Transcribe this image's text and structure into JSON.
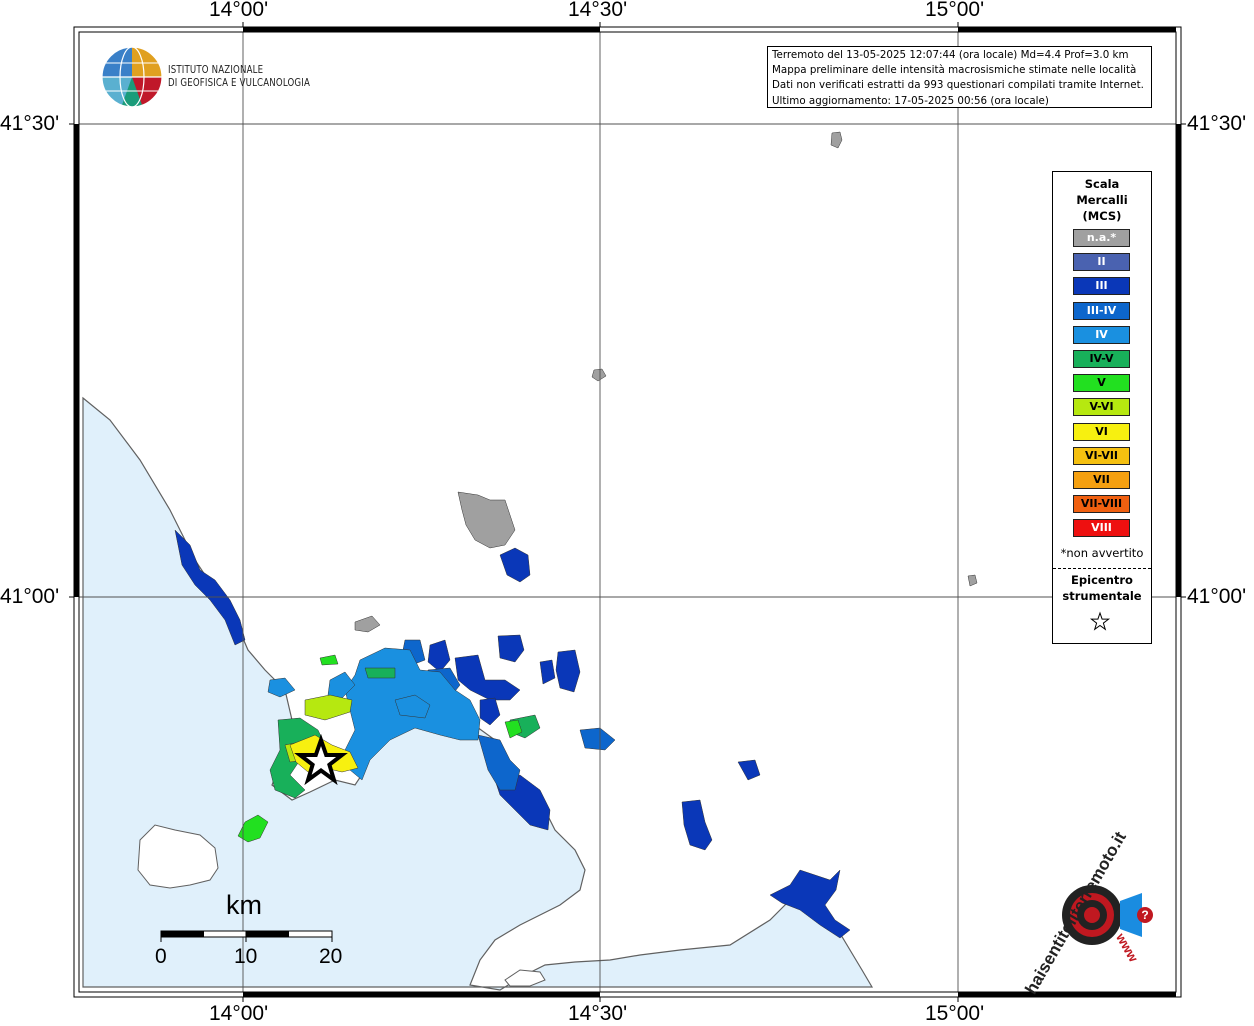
{
  "header": {
    "logo_line1": "ISTITUTO NAZIONALE",
    "logo_line2": "DI GEOFISICA E VULCANOLOGIA"
  },
  "info_box": {
    "line1": "Terremoto del 13-05-2025 12:07:44 (ora locale) Md=4.4 Prof=3.0 km",
    "line2": "Mappa preliminare delle intensità macrosismiche stimate nelle località",
    "line3": "Dati non verificati estratti da 993 questionari compilati tramite Internet.",
    "line4": "Ultimo aggiornamento: 17-05-2025 00:56 (ora locale)"
  },
  "axes": {
    "lon_labels": [
      "14°00'",
      "14°30'",
      "15°00'"
    ],
    "lat_labels": [
      "41°30'",
      "41°00'"
    ]
  },
  "legend": {
    "title_line1": "Scala",
    "title_line2": "Mercalli",
    "title_line3": "(MCS)",
    "items": [
      {
        "label": "n.a.*",
        "color": "#a0a0a0"
      },
      {
        "label": "II",
        "color": "#4a62b0"
      },
      {
        "label": "III",
        "color": "#0a37b8"
      },
      {
        "label": "III-IV",
        "color": "#0d66cc"
      },
      {
        "label": "IV",
        "color": "#1a90e0"
      },
      {
        "label": "IV-V",
        "color": "#18b05a"
      },
      {
        "label": "V",
        "color": "#22e020"
      },
      {
        "label": "V-VI",
        "color": "#b6e810"
      },
      {
        "label": "VI",
        "color": "#f7f010"
      },
      {
        "label": "VI-VII",
        "color": "#f5c010"
      },
      {
        "label": "VII",
        "color": "#f5a010"
      },
      {
        "label": "VII-VIII",
        "color": "#f06010"
      },
      {
        "label": "VIII",
        "color": "#ee1010"
      }
    ],
    "not_felt": "*non avvertito",
    "epicenter_line1": "Epicentro",
    "epicenter_line2": "strumentale"
  },
  "scale_bar": {
    "unit": "km",
    "ticks": [
      "0",
      "10",
      "20"
    ]
  },
  "watermark": {
    "text": "haisentitoilterremoto.it",
    "url_text": "www"
  },
  "colors": {
    "sea": "#e0f0fb",
    "land": "#ffffff",
    "coast": "#606060",
    "grid": "#505050"
  }
}
